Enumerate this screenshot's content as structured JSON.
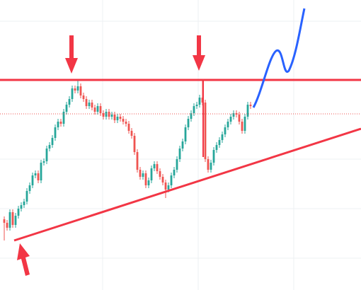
{
  "chart_data": {
    "type": "candlestick",
    "up_color": "#26a69a",
    "down_color": "#ef5350",
    "ylim": [
      0,
      410
    ],
    "open": [
      100,
      95,
      88,
      110,
      92,
      105,
      115,
      120,
      125,
      140,
      148,
      162,
      165,
      155,
      180,
      182,
      200,
      205,
      215,
      230,
      238,
      235,
      252,
      262,
      270,
      285,
      282,
      288,
      275,
      270,
      260,
      265,
      258,
      252,
      260,
      250,
      245,
      252,
      245,
      248,
      240,
      245,
      242,
      238,
      235,
      225,
      218,
      195,
      170,
      160,
      165,
      148,
      155,
      172,
      178,
      168,
      160,
      152,
      142,
      148,
      162,
      170,
      185,
      200,
      210,
      230,
      242,
      250,
      260,
      262,
      272,
      265,
      185,
      170,
      180,
      198,
      205,
      212,
      220,
      230,
      238,
      245,
      250,
      248,
      238,
      225,
      245,
      262
    ],
    "high": [
      104,
      99,
      114,
      114,
      109,
      119,
      124,
      129,
      144,
      152,
      166,
      169,
      169,
      184,
      186,
      204,
      209,
      219,
      234,
      242,
      242,
      256,
      266,
      274,
      289,
      289,
      297,
      292,
      279,
      274,
      269,
      269,
      262,
      264,
      264,
      254,
      256,
      256,
      252,
      252,
      249,
      249,
      246,
      242,
      239,
      229,
      222,
      199,
      174,
      169,
      169,
      159,
      176,
      182,
      182,
      172,
      164,
      156,
      152,
      166,
      174,
      189,
      204,
      214,
      234,
      246,
      254,
      264,
      266,
      276,
      297,
      269,
      189,
      184,
      202,
      209,
      216,
      224,
      234,
      242,
      249,
      254,
      254,
      252,
      242,
      249,
      266,
      266
    ],
    "low": [
      70,
      84,
      84,
      88,
      88,
      101,
      111,
      116,
      121,
      136,
      144,
      158,
      151,
      151,
      176,
      178,
      196,
      201,
      211,
      226,
      231,
      231,
      248,
      258,
      266,
      278,
      278,
      271,
      266,
      256,
      256,
      254,
      248,
      248,
      246,
      241,
      241,
      241,
      241,
      236,
      236,
      238,
      234,
      231,
      221,
      214,
      191,
      166,
      156,
      156,
      144,
      144,
      151,
      168,
      164,
      156,
      148,
      130,
      138,
      144,
      158,
      166,
      181,
      196,
      206,
      226,
      238,
      246,
      256,
      258,
      261,
      181,
      166,
      166,
      176,
      194,
      201,
      208,
      216,
      226,
      234,
      241,
      244,
      234,
      221,
      221,
      241,
      256
    ],
    "close": [
      95,
      88,
      110,
      92,
      105,
      115,
      120,
      125,
      140,
      148,
      162,
      165,
      155,
      180,
      182,
      200,
      205,
      215,
      230,
      238,
      235,
      252,
      262,
      270,
      285,
      282,
      288,
      275,
      270,
      260,
      265,
      258,
      252,
      260,
      250,
      245,
      252,
      245,
      248,
      240,
      245,
      242,
      238,
      235,
      225,
      218,
      195,
      170,
      160,
      165,
      148,
      155,
      172,
      178,
      168,
      160,
      152,
      142,
      148,
      162,
      170,
      185,
      200,
      210,
      230,
      242,
      250,
      260,
      262,
      272,
      265,
      185,
      170,
      180,
      198,
      205,
      212,
      220,
      230,
      238,
      245,
      250,
      248,
      238,
      225,
      245,
      262,
      260
    ]
  }
}
